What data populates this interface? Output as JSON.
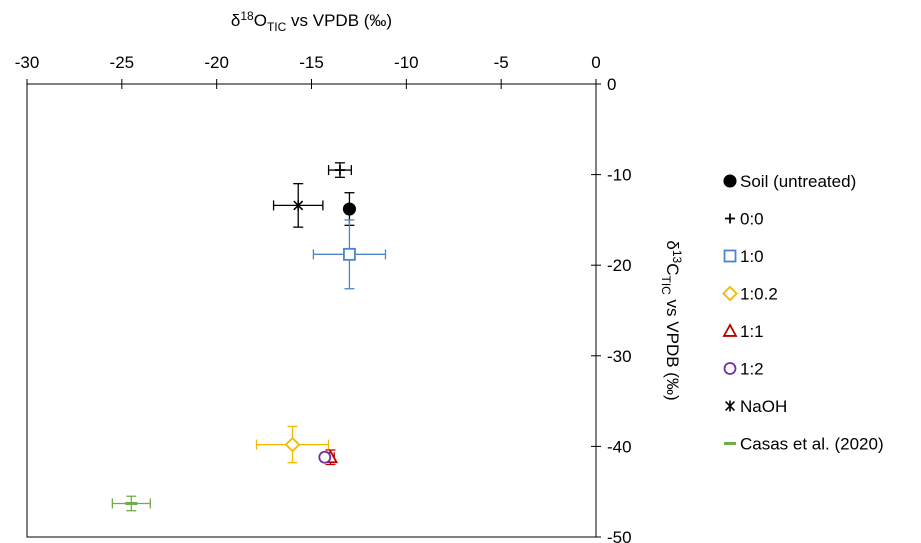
{
  "chart_data": {
    "type": "scatter",
    "title": "",
    "xlabel": {
      "base": "δ",
      "sup": "18",
      "main": "O",
      "sub": "TIC",
      "rest": " vs VPDB (‰)"
    },
    "ylabel": {
      "base": "δ",
      "sup": "13",
      "main": "C",
      "sub": "TIC",
      "rest": " vs VPDB (‰)"
    },
    "xlim": [
      -30,
      0
    ],
    "ylim": [
      -50,
      0
    ],
    "x_axis_position": "top",
    "y_axis_position": "right",
    "x_ticks": [
      -30,
      -25,
      -20,
      -15,
      -10,
      -5,
      0
    ],
    "x_tick_labels": [
      "-30",
      "-25",
      "-20",
      "-15",
      "-10",
      "-5",
      "0"
    ],
    "y_ticks": [
      0,
      -10,
      -20,
      -30,
      -40,
      -50
    ],
    "y_tick_labels": [
      "0",
      "-10",
      "-20",
      "-30",
      "-40",
      "-50"
    ],
    "grid": false,
    "legend_position": "right",
    "series": [
      {
        "name": "Soil (untreated)",
        "marker": "filled-circle",
        "color": "#000000",
        "points": [
          {
            "x": -13.0,
            "y": -13.8,
            "xerr": 0,
            "yerr": 1.8
          }
        ]
      },
      {
        "name": "0:0",
        "marker": "plus",
        "color": "#000000",
        "points": [
          {
            "x": -13.5,
            "y": -9.5,
            "xerr": 0.6,
            "yerr": 0.8
          }
        ]
      },
      {
        "name": "1:0",
        "marker": "open-square",
        "color": "#4a86c8",
        "points": [
          {
            "x": -13.0,
            "y": -18.8,
            "xerr": 1.9,
            "yerr": 3.8
          }
        ]
      },
      {
        "name": "1:0.2",
        "marker": "open-diamond",
        "color": "#f5b800",
        "points": [
          {
            "x": -16.0,
            "y": -39.8,
            "xerr": 1.9,
            "yerr": 2.0
          }
        ]
      },
      {
        "name": "1:1",
        "marker": "open-triangle",
        "color": "#c00000",
        "points": [
          {
            "x": -14.0,
            "y": -41.2,
            "xerr": 0.2,
            "yerr": 0.8
          }
        ]
      },
      {
        "name": "1:2",
        "marker": "open-circle",
        "color": "#7030a0",
        "points": [
          {
            "x": -14.3,
            "y": -41.2,
            "xerr": 0.2,
            "yerr": 0.3
          }
        ]
      },
      {
        "name": "NaOH",
        "marker": "asterisk",
        "color": "#000000",
        "points": [
          {
            "x": -15.7,
            "y": -13.4,
            "xerr": 1.3,
            "yerr": 2.4
          }
        ]
      },
      {
        "name": "Casas et al. (2020)",
        "marker": "dash",
        "color": "#70ad47",
        "points": [
          {
            "x": -24.5,
            "y": -46.3,
            "xerr": 1.0,
            "yerr": 0.8
          }
        ]
      }
    ]
  }
}
